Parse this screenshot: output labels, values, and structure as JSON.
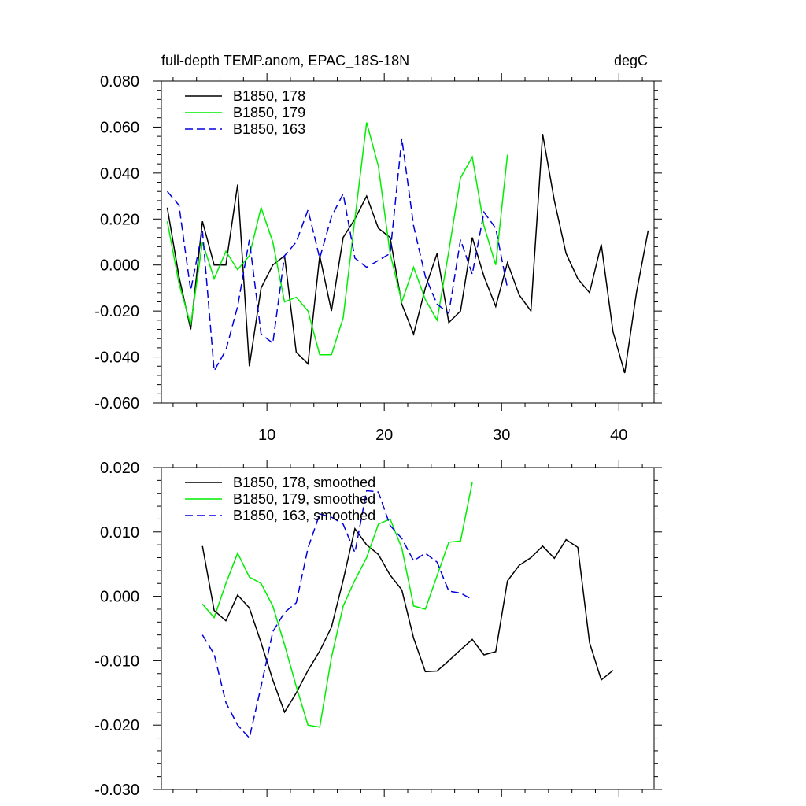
{
  "chart_data": [
    {
      "type": "line",
      "title": "full-depth TEMP.anom, EPAC_18S-18N",
      "units": "degC",
      "xlabel": "",
      "ylabel": "",
      "xlim": [
        1,
        43
      ],
      "ylim": [
        -0.06,
        0.08
      ],
      "x_ticks": [
        10,
        20,
        30,
        40
      ],
      "x_tick_labels": [
        "10",
        "20",
        "30",
        "40"
      ],
      "y_ticks": [
        -0.06,
        -0.04,
        -0.02,
        0.0,
        0.02,
        0.04,
        0.06,
        0.08
      ],
      "y_tick_labels": [
        "-0.060",
        "-0.040",
        "-0.020",
        "0.000",
        "0.020",
        "0.040",
        "0.060",
        "0.080"
      ],
      "legend_position": "top-left",
      "series": [
        {
          "name": "B1850, 178",
          "color": "#000000",
          "dash": "solid",
          "x": [
            1.5,
            2.5,
            3.5,
            4.5,
            5.5,
            6.5,
            7.5,
            8.5,
            9.5,
            10.5,
            11.5,
            12.5,
            13.5,
            14.5,
            15.5,
            16.5,
            17.5,
            18.5,
            19.5,
            20.5,
            21.5,
            22.5,
            23.5,
            24.5,
            25.5,
            26.5,
            27.5,
            28.5,
            29.5,
            30.5,
            31.5,
            32.5,
            33.5,
            34.5,
            35.5,
            36.5,
            37.5,
            38.5,
            39.5,
            40.5,
            41.5,
            42.5
          ],
          "values": [
            0.025,
            -0.005,
            -0.028,
            0.019,
            0.0,
            0.0,
            0.035,
            -0.044,
            -0.01,
            0.0,
            0.004,
            -0.038,
            -0.043,
            0.004,
            -0.02,
            0.012,
            0.02,
            0.03,
            0.016,
            0.012,
            -0.017,
            -0.03,
            -0.01,
            0.005,
            -0.025,
            -0.02,
            0.012,
            -0.005,
            -0.018,
            0.001,
            -0.013,
            -0.02,
            0.057,
            0.028,
            0.005,
            -0.006,
            -0.012,
            0.009,
            -0.029,
            -0.047,
            -0.012,
            0.015
          ]
        },
        {
          "name": "B1850, 179",
          "color": "#00ee00",
          "dash": "solid",
          "x": [
            1.5,
            2.5,
            3.5,
            4.5,
            5.5,
            6.5,
            7.5,
            8.5,
            9.5,
            10.5,
            11.5,
            12.5,
            13.5,
            14.5,
            15.5,
            16.5,
            17.5,
            18.5,
            19.5,
            20.5,
            21.5,
            22.5,
            23.5,
            24.5,
            25.5,
            26.5,
            27.5,
            28.5,
            29.5,
            30.5
          ],
          "values": [
            0.019,
            -0.008,
            -0.026,
            0.01,
            -0.006,
            0.006,
            -0.002,
            0.004,
            0.025,
            0.01,
            -0.016,
            -0.014,
            -0.02,
            -0.039,
            -0.039,
            -0.023,
            0.02,
            0.062,
            0.043,
            0.005,
            -0.016,
            -0.001,
            -0.015,
            -0.024,
            0.006,
            0.038,
            0.047,
            0.017,
            0.0,
            0.048
          ]
        },
        {
          "name": "B1850, 163",
          "color": "#0000dd",
          "dash": "dashed",
          "x": [
            1.5,
            2.5,
            3.5,
            4.5,
            5.5,
            6.5,
            7.5,
            8.5,
            9.5,
            10.5,
            11.5,
            12.5,
            13.5,
            14.5,
            15.5,
            16.5,
            17.5,
            18.5,
            19.5,
            20.5,
            21.5,
            22.5,
            23.5,
            24.5,
            25.5,
            26.5,
            27.5,
            28.5,
            29.5,
            30.5
          ],
          "values": [
            0.032,
            0.026,
            -0.011,
            0.015,
            -0.046,
            -0.037,
            -0.018,
            0.011,
            -0.03,
            -0.034,
            0.004,
            0.01,
            0.024,
            0.003,
            0.021,
            0.031,
            0.003,
            -0.001,
            0.002,
            0.005,
            0.055,
            0.017,
            -0.005,
            -0.017,
            -0.021,
            0.011,
            -0.004,
            0.023,
            0.016,
            -0.01
          ]
        }
      ]
    },
    {
      "type": "line",
      "title": "",
      "xlabel": "",
      "ylabel": "",
      "xlim": [
        1,
        43
      ],
      "ylim": [
        -0.03,
        0.02
      ],
      "x_ticks": [
        10,
        20,
        30,
        40
      ],
      "x_tick_labels": [],
      "y_ticks": [
        -0.03,
        -0.02,
        -0.01,
        0.0,
        0.01,
        0.02
      ],
      "y_tick_labels": [
        "-0.030",
        "-0.020",
        "-0.010",
        "0.000",
        "0.010",
        "0.020"
      ],
      "legend_position": "top-left",
      "series": [
        {
          "name": "B1850, 178, smoothed",
          "color": "#000000",
          "dash": "solid",
          "x": [
            4.5,
            5.5,
            6.5,
            7.5,
            8.5,
            9.5,
            10.5,
            11.5,
            12.5,
            13.5,
            14.5,
            15.5,
            16.5,
            17.5,
            18.5,
            19.5,
            20.5,
            21.5,
            22.5,
            23.5,
            24.5,
            25.5,
            26.5,
            27.5,
            28.5,
            29.5,
            30.5,
            31.5,
            32.5,
            33.5,
            34.5,
            35.5,
            36.5,
            37.5,
            38.5,
            39.5
          ],
          "values": [
            0.0078,
            -0.0022,
            -0.0038,
            0.0002,
            -0.0018,
            -0.0072,
            -0.013,
            -0.018,
            -0.015,
            -0.0115,
            -0.0085,
            -0.0048,
            0.0025,
            0.0105,
            0.008,
            0.0065,
            0.0033,
            0.001,
            -0.0065,
            -0.0117,
            -0.0116,
            -0.01,
            -0.0083,
            -0.0067,
            -0.0091,
            -0.0086,
            0.0024,
            0.0048,
            0.006,
            0.0078,
            0.0059,
            0.0088,
            0.0076,
            -0.0072,
            -0.013,
            -0.0115
          ]
        },
        {
          "name": "B1850, 179, smoothed",
          "color": "#00ee00",
          "dash": "solid",
          "x": [
            4.5,
            5.5,
            6.5,
            7.5,
            8.5,
            9.5,
            10.5,
            11.5,
            12.5,
            13.5,
            14.5,
            15.5,
            16.5,
            17.5,
            18.5,
            19.5,
            20.5,
            21.5,
            22.5,
            23.5,
            24.5,
            25.5,
            26.5,
            27.5
          ],
          "values": [
            -0.0012,
            -0.0033,
            0.002,
            0.0067,
            0.003,
            0.002,
            -0.0015,
            -0.0075,
            -0.014,
            -0.02,
            -0.0203,
            -0.0095,
            -0.0015,
            0.0025,
            0.006,
            0.0112,
            0.012,
            0.0075,
            -0.0015,
            -0.002,
            0.0032,
            0.0084,
            0.0086,
            0.0177
          ]
        },
        {
          "name": "B1850, 163, smoothed",
          "color": "#0000dd",
          "dash": "dashed",
          "x": [
            4.5,
            5.5,
            6.5,
            7.5,
            8.5,
            9.5,
            10.5,
            11.5,
            12.5,
            13.5,
            14.5,
            15.5,
            16.5,
            17.5,
            18.5,
            19.5,
            20.5,
            21.5,
            22.5,
            23.5,
            24.5,
            25.5,
            26.5,
            27.5
          ],
          "values": [
            -0.006,
            -0.009,
            -0.0165,
            -0.02,
            -0.022,
            -0.014,
            -0.0055,
            -0.0025,
            -0.001,
            0.0075,
            0.0128,
            0.0123,
            0.0112,
            0.0068,
            0.0164,
            0.0162,
            0.011,
            0.009,
            0.0055,
            0.0067,
            0.0053,
            0.0008,
            0.0005,
            -0.0005
          ]
        }
      ]
    }
  ]
}
